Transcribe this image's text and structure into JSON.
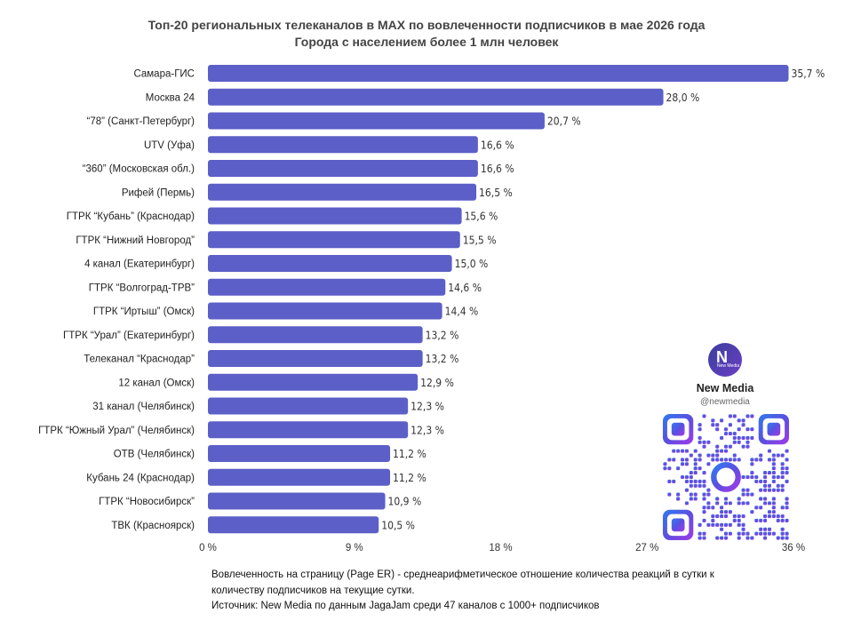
{
  "title_line1": "Топ-20 региональных телеканалов в MAX по вовлеченности подписчиков в мае 2026 года",
  "title_line2": "Города с населением более 1 млн человек",
  "chart_data": {
    "type": "bar",
    "orientation": "horizontal",
    "categories": [
      "Самара-ГИС",
      "Москва 24",
      "“78” (Санкт-Петербург)",
      "UTV (Уфа)",
      "“360” (Московская обл.)",
      "Рифей (Пермь)",
      "ГТРК “Кубань” (Краснодар)",
      "ГТРК “Нижний Новгород”",
      "4 канал (Екатеринбург)",
      "ГТРК “Волгоград-ТРВ”",
      "ГТРК “Иртыш” (Омск)",
      "ГТРК “Урал” (Екатеринбург)",
      "Телеканал “Краснодар”",
      "12 канал (Омск)",
      "31 канал (Челябинск)",
      "ГТРК “Южный Урал” (Челябинск)",
      "ОТВ (Челябинск)",
      "Кубань 24 (Краснодар)",
      "ГТРК “Новосибирск”",
      "ТВК (Красноярск)"
    ],
    "values": [
      35.7,
      28.0,
      20.7,
      16.6,
      16.6,
      16.5,
      15.6,
      15.5,
      15.0,
      14.6,
      14.4,
      13.2,
      13.2,
      12.9,
      12.3,
      12.3,
      11.2,
      11.2,
      10.9,
      10.5
    ],
    "value_labels": [
      "35,7 %",
      "28,0 %",
      "20,7 %",
      "16,6 %",
      "16,6 %",
      "16,5 %",
      "15,6 %",
      "15,5 %",
      "15,0 %",
      "14,6 %",
      "14,4 %",
      "13,2 %",
      "13,2 %",
      "12,9 %",
      "12,3 %",
      "12,3 %",
      "11,2 %",
      "11,2 %",
      "10,9 %",
      "10,5 %"
    ],
    "x_ticks": [
      0,
      9,
      18,
      27,
      36
    ],
    "x_tick_labels": [
      "0 %",
      "9 %",
      "18 %",
      "27 %",
      "36 %"
    ],
    "xlim": [
      0,
      36
    ],
    "bar_color": "#5b5fc7",
    "grid": false
  },
  "footer": {
    "line1": "Вовлеченность на страницу (Page ER) - среднеарифметическое отношение количества реакций в сутки к",
    "line2": "количеству подписчиков на текущие сутки.",
    "line3": "Источник: New Media по данным JagaJam среди 47 каналов с 1000+ подписчиков"
  },
  "brand": {
    "logo_letter": "N",
    "logo_small": "New Media",
    "name": "New Media",
    "handle": "@newmedia",
    "qr_icon": "qr-code-icon"
  }
}
